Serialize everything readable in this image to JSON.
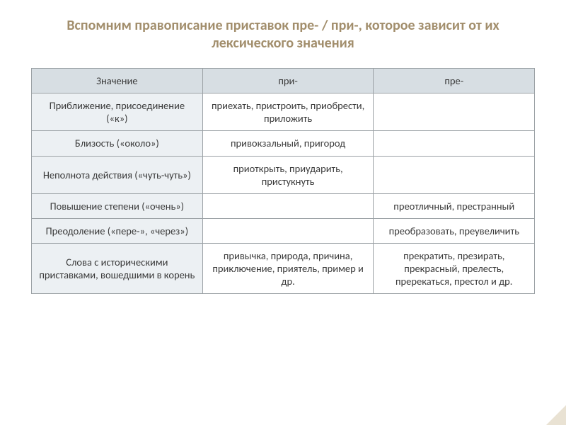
{
  "title": "Вспомним правописание приставок пре- / при-, которое зависит от их лексического значения",
  "table": {
    "header": {
      "meaning": "Значение",
      "pri": "при-",
      "pre": "пре-"
    },
    "rows": [
      {
        "meaning": "Приближение, присоединение («к»)",
        "pri": "приехать, пристроить, приобрести, приложить",
        "pre": ""
      },
      {
        "meaning": "Близость («около»)",
        "pri": "привокзальный, пригород",
        "pre": ""
      },
      {
        "meaning": "Неполнота действия («чуть-чуть»)",
        "pri": "приоткрыть, приударить, пристукнуть",
        "pre": ""
      },
      {
        "meaning": "Повышение степени («очень»)",
        "pri": "",
        "pre": "преотличный, престранный"
      },
      {
        "meaning": "Преодоление («пере-», «через»)",
        "pri": "",
        "pre": "преобразовать, преувеличить"
      },
      {
        "meaning": "Слова с историческими приставками, вошедшими в корень",
        "pri": "привычка, природа, причина, приключение, приятель, пример и др.",
        "pre": "прекратить, презирать, прекрасный, прелесть, пререкаться, престол и др."
      }
    ]
  },
  "colors": {
    "title_color": "#a28e6c",
    "header_bg": "#d7dee3",
    "meaning_bg": "#ecf0f3",
    "cell_bg": "#ffffff",
    "border": "#9ba1a5",
    "text": "#3a3a3a",
    "corner": "#e9e2d3"
  },
  "fonts": {
    "title_size_pt": 16,
    "cell_size_pt": 11,
    "family": "Calibri"
  }
}
